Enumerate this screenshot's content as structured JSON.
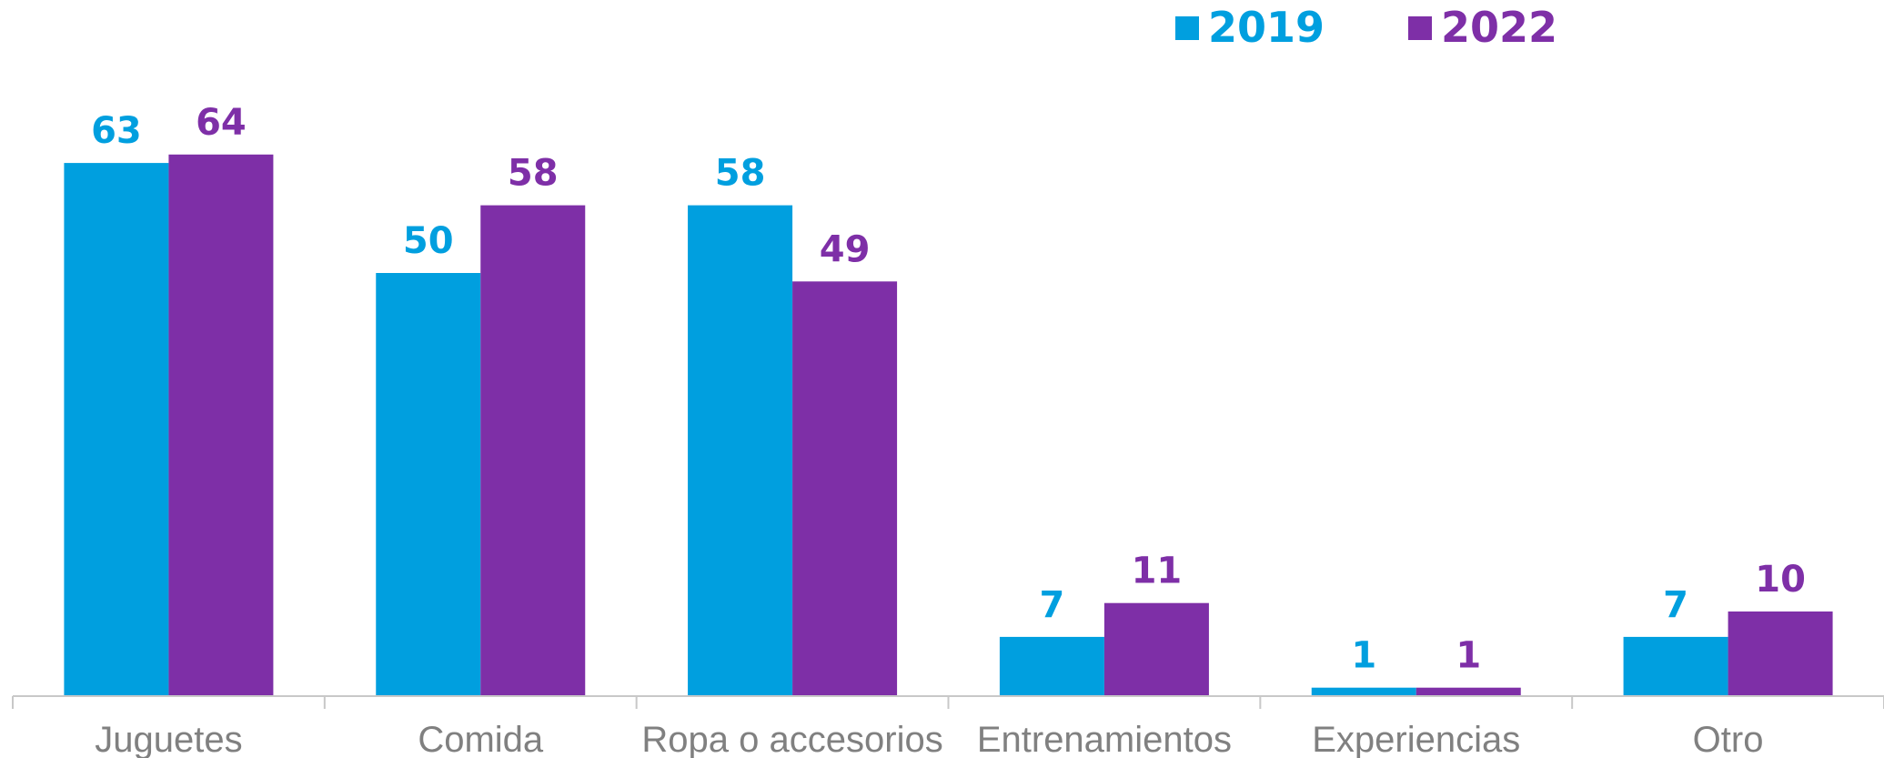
{
  "chart_data": {
    "type": "bar",
    "title": "",
    "xlabel": "",
    "ylabel": "",
    "ylim": [
      0,
      70
    ],
    "grid": false,
    "legend": "top-right",
    "categories": [
      "Juguetes",
      "Comida",
      "Ropa o accesorios",
      "Entrenamientos",
      "Experiencias",
      "Otro"
    ],
    "series": [
      {
        "name": "2019",
        "color": "#009fdf",
        "values": [
          63,
          50,
          58,
          7,
          1,
          7
        ]
      },
      {
        "name": "2022",
        "color": "#7e2fa7",
        "values": [
          64,
          58,
          49,
          11,
          1,
          10
        ]
      }
    ]
  }
}
